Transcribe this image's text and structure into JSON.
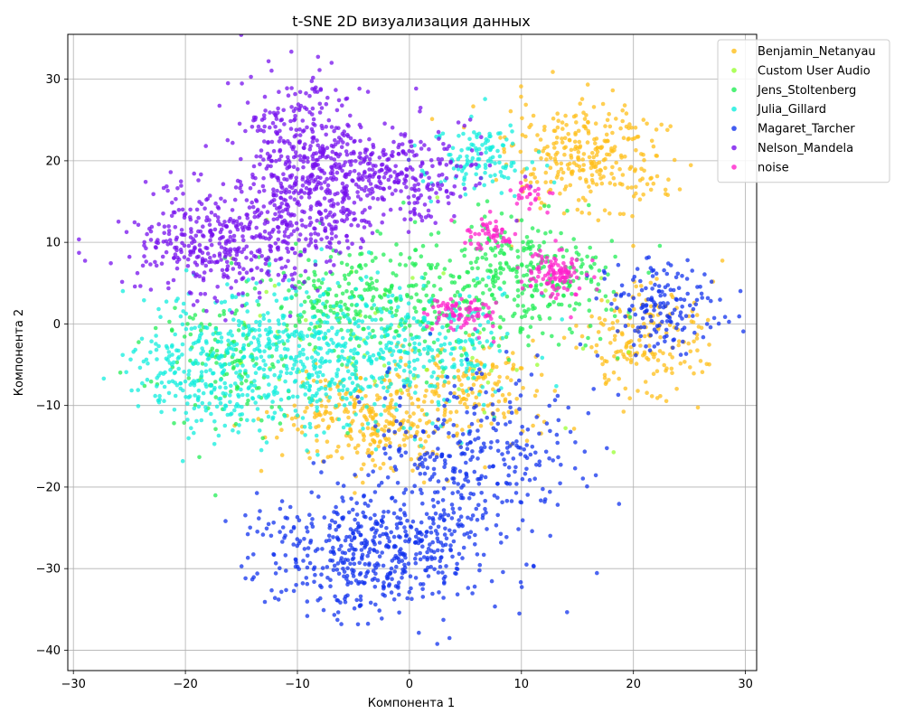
{
  "chart_data": {
    "type": "scatter",
    "title": "t-SNE 2D визуализация данных",
    "xlabel": "Компонента 1",
    "ylabel": "Компонента 2",
    "xlim": [
      -30.5,
      31
    ],
    "ylim": [
      -42.5,
      35.5
    ],
    "xticks": [
      -30,
      -20,
      -10,
      0,
      10,
      20,
      30
    ],
    "yticks": [
      -40,
      -30,
      -20,
      -10,
      0,
      10,
      20,
      30
    ],
    "grid": true,
    "legend_position": "top-right",
    "series": [
      {
        "name": "Benjamin_Netanyau",
        "color": "#ffbf1a",
        "clusters": [
          {
            "cx": 16,
            "cy": 20,
            "sx": 3.5,
            "sy": 3.5,
            "n": 300
          },
          {
            "cx": 21,
            "cy": -2,
            "sx": 2.8,
            "sy": 3.5,
            "n": 180
          },
          {
            "cx": -4,
            "cy": -12,
            "sx": 4.0,
            "sy": 3.0,
            "n": 260
          },
          {
            "cx": 5,
            "cy": -8,
            "sx": 4.0,
            "sy": 3.0,
            "n": 180
          }
        ]
      },
      {
        "name": "Custom User Audio",
        "color": "#99ff33",
        "clusters": [
          {
            "cx": 0,
            "cy": 0,
            "sx": 9.0,
            "sy": 5.5,
            "n": 70
          }
        ]
      },
      {
        "name": "Jens_Stoltenberg",
        "color": "#22ee55",
        "clusters": [
          {
            "cx": 10,
            "cy": 6,
            "sx": 4.0,
            "sy": 4.0,
            "n": 320
          },
          {
            "cx": -4,
            "cy": 3,
            "sx": 5.5,
            "sy": 4.0,
            "n": 320
          },
          {
            "cx": -16,
            "cy": -5,
            "sx": 3.5,
            "sy": 4.0,
            "n": 120
          }
        ]
      },
      {
        "name": "Julia_Gillard",
        "color": "#11eedd",
        "clusters": [
          {
            "cx": -8,
            "cy": -4,
            "sx": 6.5,
            "sy": 4.5,
            "n": 600
          },
          {
            "cx": -18,
            "cy": -6,
            "sx": 3.5,
            "sy": 3.5,
            "n": 200
          },
          {
            "cx": 6,
            "cy": 20,
            "sx": 2.5,
            "sy": 2.0,
            "n": 120
          },
          {
            "cx": 3,
            "cy": -2,
            "sx": 3.0,
            "sy": 3.0,
            "n": 120
          }
        ]
      },
      {
        "name": "Magaret_Tarcher",
        "color": "#1133ee",
        "clusters": [
          {
            "cx": -3,
            "cy": -28,
            "sx": 5.0,
            "sy": 4.0,
            "n": 550
          },
          {
            "cx": 6,
            "cy": -16,
            "sx": 4.5,
            "sy": 5.0,
            "n": 300
          },
          {
            "cx": 23,
            "cy": 2,
            "sx": 2.8,
            "sy": 2.8,
            "n": 160
          }
        ]
      },
      {
        "name": "Nelson_Mandela",
        "color": "#7711ee",
        "clusters": [
          {
            "cx": -17,
            "cy": 10,
            "sx": 4.0,
            "sy": 3.5,
            "n": 380
          },
          {
            "cx": -10,
            "cy": 22,
            "sx": 2.8,
            "sy": 4.5,
            "n": 300
          },
          {
            "cx": -3,
            "cy": 18,
            "sx": 4.5,
            "sy": 3.0,
            "n": 380
          },
          {
            "cx": -9,
            "cy": 13,
            "sx": 3.0,
            "sy": 2.5,
            "n": 160
          }
        ]
      },
      {
        "name": "noise",
        "color": "#ff22cc",
        "clusters": [
          {
            "cx": 13,
            "cy": 6,
            "sx": 1.3,
            "sy": 1.5,
            "n": 110
          },
          {
            "cx": 5,
            "cy": 1.5,
            "sx": 1.8,
            "sy": 1.0,
            "n": 80
          },
          {
            "cx": 7,
            "cy": 11,
            "sx": 1.2,
            "sy": 1.2,
            "n": 50
          },
          {
            "cx": 10.5,
            "cy": 16,
            "sx": 1.0,
            "sy": 1.0,
            "n": 25
          }
        ]
      }
    ]
  }
}
